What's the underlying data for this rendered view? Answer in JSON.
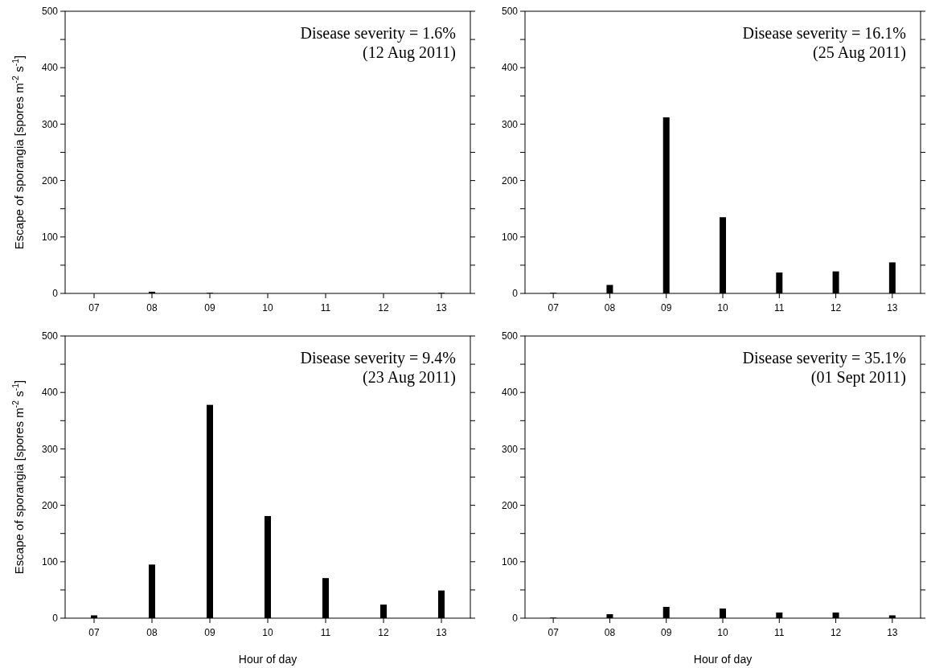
{
  "chart_data": [
    {
      "type": "bar",
      "categories": [
        "07",
        "08",
        "09",
        "10",
        "11",
        "12",
        "13"
      ],
      "values": [
        0,
        3,
        1,
        0,
        0,
        0,
        1
      ],
      "color": "#000000",
      "ylim": [
        0,
        500
      ],
      "yticks": [
        0,
        {
          "value": 50,
          "label": null
        },
        100,
        {
          "value": 150,
          "label": null
        },
        200,
        {
          "value": 250,
          "label": null
        },
        300,
        {
          "value": 350,
          "label": null
        },
        400,
        {
          "value": 450,
          "label": null
        },
        500
      ],
      "ylabel": "Escape of sporangia [spores m$^{-2}$ s$^{-1}$]",
      "annotations": [
        "Disease severity = 1.6%",
        "(12 Aug 2011)"
      ],
      "grid": false
    },
    {
      "type": "bar",
      "categories": [
        "07",
        "08",
        "09",
        "10",
        "11",
        "12",
        "13"
      ],
      "values": [
        1,
        15,
        312,
        135,
        37,
        39,
        55
      ],
      "color": "#000000",
      "ylim": [
        0,
        500
      ],
      "yticks": [
        0,
        {
          "value": 50,
          "label": null
        },
        100,
        {
          "value": 150,
          "label": null
        },
        200,
        {
          "value": 250,
          "label": null
        },
        300,
        {
          "value": 350,
          "label": null
        },
        400,
        {
          "value": 450,
          "label": null
        },
        500
      ],
      "annotations": [
        "Disease severity = 16.1%",
        "(25 Aug 2011)"
      ],
      "grid": false
    },
    {
      "type": "bar",
      "categories": [
        "07",
        "08",
        "09",
        "10",
        "11",
        "12",
        "13"
      ],
      "values": [
        5,
        95,
        378,
        181,
        71,
        24,
        49
      ],
      "color": "#000000",
      "ylim": [
        0,
        500
      ],
      "yticks": [
        0,
        {
          "value": 50,
          "label": null
        },
        100,
        {
          "value": 150,
          "label": null
        },
        200,
        {
          "value": 250,
          "label": null
        },
        300,
        {
          "value": 350,
          "label": null
        },
        400,
        {
          "value": 450,
          "label": null
        },
        500
      ],
      "ylabel": "Escape of sporangia [spores m$^{-2}$ s$^{-1}$]",
      "xlabel": "Hour of day",
      "annotations": [
        "Disease severity = 9.4%",
        "(23 Aug 2011)"
      ],
      "grid": false
    },
    {
      "type": "bar",
      "categories": [
        "07",
        "08",
        "09",
        "10",
        "11",
        "12",
        "13"
      ],
      "values": [
        1,
        7,
        20,
        17,
        10,
        10,
        5
      ],
      "color": "#000000",
      "ylim": [
        0,
        500
      ],
      "yticks": [
        0,
        {
          "value": 50,
          "label": null
        },
        100,
        {
          "value": 150,
          "label": null
        },
        200,
        {
          "value": 250,
          "label": null
        },
        300,
        {
          "value": 350,
          "label": null
        },
        400,
        {
          "value": 450,
          "label": null
        },
        500
      ],
      "xlabel": "Hour of day",
      "annotations": [
        "Disease severity = 35.1%",
        "(01 Sept 2011)"
      ],
      "grid": false
    }
  ]
}
